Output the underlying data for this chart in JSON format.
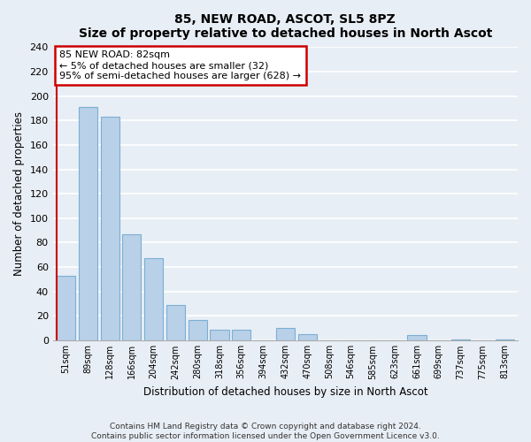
{
  "title": "85, NEW ROAD, ASCOT, SL5 8PZ",
  "subtitle": "Size of property relative to detached houses in North Ascot",
  "xlabel": "Distribution of detached houses by size in North Ascot",
  "ylabel": "Number of detached properties",
  "bar_labels": [
    "51sqm",
    "89sqm",
    "128sqm",
    "166sqm",
    "204sqm",
    "242sqm",
    "280sqm",
    "318sqm",
    "356sqm",
    "394sqm",
    "432sqm",
    "470sqm",
    "508sqm",
    "546sqm",
    "585sqm",
    "623sqm",
    "661sqm",
    "699sqm",
    "737sqm",
    "775sqm",
    "813sqm"
  ],
  "bar_values": [
    53,
    191,
    183,
    87,
    67,
    29,
    17,
    9,
    9,
    0,
    10,
    5,
    0,
    0,
    0,
    0,
    4,
    0,
    1,
    0,
    1
  ],
  "bar_color": "#b8d0e8",
  "bar_edge_color": "#7aafd4",
  "highlight_line_color": "#cc0000",
  "ylim": [
    0,
    240
  ],
  "yticks": [
    0,
    20,
    40,
    60,
    80,
    100,
    120,
    140,
    160,
    180,
    200,
    220,
    240
  ],
  "annotation_box_text_line1": "85 NEW ROAD: 82sqm",
  "annotation_box_text_line2": "← 5% of detached houses are smaller (32)",
  "annotation_box_text_line3": "95% of semi-detached houses are larger (628) →",
  "annotation_box_color": "#cc0000",
  "annotation_box_facecolor": "white",
  "footer_line1": "Contains HM Land Registry data © Crown copyright and database right 2024.",
  "footer_line2": "Contains public sector information licensed under the Open Government Licence v3.0.",
  "background_color": "#e8eef5",
  "grid_color": "#ffffff"
}
